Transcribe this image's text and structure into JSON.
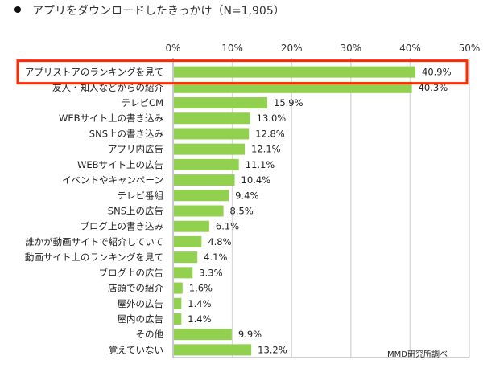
{
  "title": "アプリをダウンロードしたきっかけ（N=1,905）",
  "credit": "MMD研究所調べ",
  "colors": {
    "bar": "#92d050",
    "highlight_box": "#ff2a00",
    "grid": "#d9d9d9"
  },
  "chart_data": {
    "type": "bar",
    "orientation": "horizontal",
    "title": "アプリをダウンロードしたきっかけ（N=1,905）",
    "xlim": [
      0,
      50
    ],
    "x_ticks": [
      "0%",
      "10%",
      "20%",
      "30%",
      "40%",
      "50%"
    ],
    "x_tick_values": [
      0,
      10,
      20,
      30,
      40,
      50
    ],
    "axis_position": "top",
    "grid": true,
    "highlighted_category": "アプリストアのランキングを見て",
    "categories": [
      "アプリストアのランキングを見て",
      "友人・知人などからの紹介",
      "テレビCM",
      "WEBサイト上の書き込み",
      "SNS上の書き込み",
      "アプリ内広告",
      "WEBサイト上の広告",
      "イベントやキャンペーン",
      "テレビ番組",
      "SNS上の広告",
      "ブログ上の書き込み",
      "誰かが動画サイトで紹介していて",
      "動画サイト上のランキングを見て",
      "ブログ上の広告",
      "店頭での紹介",
      "屋外の広告",
      "屋内の広告",
      "その他",
      "覚えていない"
    ],
    "values": [
      40.9,
      40.3,
      15.9,
      13.0,
      12.8,
      12.1,
      11.1,
      10.4,
      9.4,
      8.5,
      6.1,
      4.8,
      4.1,
      3.3,
      1.6,
      1.4,
      1.4,
      9.9,
      13.2
    ],
    "value_labels": [
      "40.9%",
      "40.3%",
      "15.9%",
      "13.0%",
      "12.8%",
      "12.1%",
      "11.1%",
      "10.4%",
      "9.4%",
      "8.5%",
      "6.1%",
      "4.8%",
      "4.1%",
      "3.3%",
      "1.6%",
      "1.4%",
      "1.4%",
      "9.9%",
      "13.2%"
    ]
  }
}
